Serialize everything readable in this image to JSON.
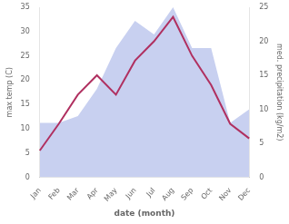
{
  "chart_data": {
    "type": "line",
    "categories": [
      "Jan",
      "Feb",
      "Mar",
      "Apr",
      "May",
      "Jun",
      "Jul",
      "Aug",
      "Sep",
      "Oct",
      "Nov",
      "Dec"
    ],
    "xlabel": "date (month)",
    "ylabel": "max temp (C)",
    "y2label": "med. precipitation (kg/m2)",
    "ylim": [
      0,
      35
    ],
    "yticks": [
      0,
      5,
      10,
      15,
      20,
      25,
      30,
      35
    ],
    "y2lim": [
      0,
      25
    ],
    "y2ticks": [
      0,
      5,
      10,
      15,
      20,
      25
    ],
    "grid": false,
    "series": [
      {
        "type": "area",
        "axis": "y2",
        "color": "#c8d0f0",
        "values": [
          8,
          8,
          9,
          13,
          19,
          23,
          21,
          25,
          19,
          19,
          8,
          10
        ]
      },
      {
        "type": "line",
        "color": "#b03060",
        "values": [
          5.5,
          11.0,
          17.0,
          21.0,
          17.0,
          24.0,
          28.0,
          33.0,
          25.0,
          19.0,
          11.0,
          8.0
        ]
      }
    ]
  }
}
